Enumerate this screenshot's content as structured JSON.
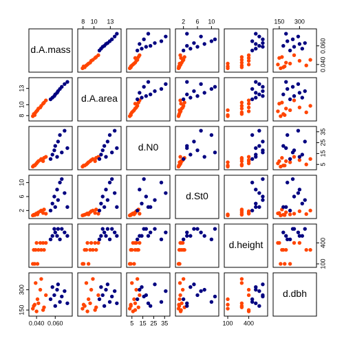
{
  "chart_data": {
    "type": "scatter-matrix",
    "point_colors": [
      "#ff4500",
      "#ff4500",
      "#ff4500",
      "#ff4500",
      "#ff4500",
      "#ff4500",
      "#ff4500",
      "#ff4500",
      "#ff4500",
      "#ff4500",
      "#ff4500",
      "#ff4500",
      "#000080",
      "#000080",
      "#000080",
      "#000080",
      "#000080",
      "#000080",
      "#000080",
      "#000080",
      "#000080",
      "#000080"
    ],
    "variables": [
      {
        "name": "d.A.mass",
        "lim": [
          0.034,
          0.076
        ],
        "ticks": [
          {
            "value": 0.04,
            "label": "0.040"
          },
          {
            "value": 0.06,
            "label": "0.060"
          }
        ],
        "values": [
          0.036,
          0.037,
          0.039,
          0.04,
          0.041,
          0.042,
          0.044,
          0.045,
          0.047,
          0.048,
          0.05,
          0.038,
          0.055,
          0.057,
          0.059,
          0.06,
          0.062,
          0.063,
          0.065,
          0.067,
          0.07,
          0.073
        ]
      },
      {
        "name": "d.A.area",
        "lim": [
          7.4,
          14.6
        ],
        "ticks": [
          8,
          10,
          13
        ],
        "values": [
          7.9,
          8.3,
          8.6,
          8.8,
          9.0,
          9.3,
          9.5,
          9.8,
          10.2,
          10.4,
          10.8,
          8.1,
          11.0,
          11.3,
          11.6,
          11.9,
          12.2,
          12.5,
          12.9,
          13.3,
          13.8,
          14.2
        ]
      },
      {
        "name": "d.N0",
        "lim": [
          2,
          38
        ],
        "ticks": [
          5,
          15,
          25,
          35
        ],
        "values": [
          3,
          4,
          5,
          6,
          7,
          8,
          9,
          10,
          8,
          11,
          12,
          4,
          10,
          14,
          18,
          22,
          12,
          26,
          32,
          16,
          36,
          20
        ]
      },
      {
        "name": "d.St0",
        "lim": [
          0.3,
          11.5
        ],
        "ticks": [
          2,
          6,
          10
        ],
        "values": [
          0.6,
          0.8,
          1.0,
          1.2,
          0.9,
          1.5,
          1.8,
          2.0,
          1.3,
          2.3,
          1.1,
          0.7,
          2,
          4,
          6,
          3,
          8,
          5,
          10,
          11,
          7,
          3
        ]
      },
      {
        "name": "d.height",
        "lim": [
          80,
          640
        ],
        "ticks": [
          100,
          400
        ],
        "values": [
          100,
          300,
          300,
          400,
          100,
          300,
          400,
          300,
          400,
          300,
          400,
          100,
          450,
          500,
          600,
          550,
          500,
          600,
          450,
          600,
          550,
          500
        ]
      },
      {
        "name": "d.dbh",
        "lim": [
          120,
          410
        ],
        "ticks": [
          150,
          300
        ],
        "values": [
          160,
          180,
          350,
          140,
          230,
          200,
          300,
          380,
          150,
          170,
          260,
          190,
          230,
          320,
          260,
          180,
          300,
          340,
          210,
          250,
          290,
          200
        ]
      }
    ]
  }
}
